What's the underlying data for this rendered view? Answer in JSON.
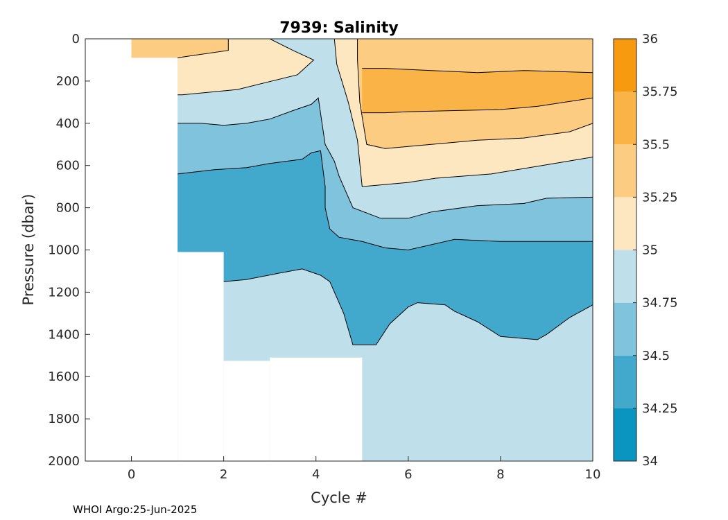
{
  "chart_data": {
    "type": "heatmap",
    "subtype": "filled-contour",
    "title": "7939:  Salinity",
    "xlabel": "Cycle #",
    "ylabel": "Pressure (dbar)",
    "xlim": [
      -1,
      10
    ],
    "ylim": [
      0,
      2000
    ],
    "y_reversed": true,
    "x_ticks": [
      0,
      2,
      4,
      6,
      8,
      10
    ],
    "y_ticks": [
      0,
      200,
      400,
      600,
      800,
      1000,
      1200,
      1400,
      1600,
      1800,
      2000
    ],
    "colorbar": {
      "levels": [
        34,
        34.25,
        34.5,
        34.75,
        35,
        35.25,
        35.5,
        35.75,
        36
      ],
      "tick_labels": [
        "34",
        "34.25",
        "34.5",
        "34.75",
        "35",
        "35.25",
        "35.5",
        "35.75",
        "36"
      ],
      "colors": [
        "#0a94c0",
        "#42a9cd",
        "#80c3dd",
        "#bfe0eb",
        "#fde7c1",
        "#fbcc82",
        "#f9b347",
        "#f79a10"
      ]
    },
    "profile_max_pressure": [
      {
        "cycle": 0,
        "pressure": 90
      },
      {
        "cycle": 1,
        "pressure": 1010
      },
      {
        "cycle": 2,
        "pressure": 1525
      },
      {
        "cycle": 3,
        "pressure": 1510
      },
      {
        "cycle": 5,
        "pressure": 2000
      },
      {
        "cycle": 10,
        "pressure": 2000
      }
    ],
    "regions": [
      {
        "level": "34.75-35",
        "points": [
          [
            0,
            0
          ],
          [
            10,
            0
          ],
          [
            10,
            2000
          ],
          [
            0,
            2000
          ]
        ]
      },
      {
        "level": "35-35.25",
        "points": [
          [
            0,
            0
          ],
          [
            3,
            0
          ],
          [
            3.5,
            55
          ],
          [
            3.95,
            100
          ],
          [
            3.6,
            170
          ],
          [
            2.3,
            240
          ],
          [
            1.1,
            265
          ],
          [
            1,
            265
          ],
          [
            1,
            90
          ],
          [
            0,
            90
          ]
        ]
      },
      {
        "level": "35-35.25",
        "points": [
          [
            4.4,
            0
          ],
          [
            10,
            0
          ],
          [
            10,
            560
          ],
          [
            8.9,
            600
          ],
          [
            7.8,
            640
          ],
          [
            6.6,
            660
          ],
          [
            6,
            680
          ],
          [
            5.5,
            690
          ],
          [
            5,
            700
          ],
          [
            4.9,
            480
          ],
          [
            4.7,
            300
          ],
          [
            4.45,
            120
          ]
        ]
      },
      {
        "level": "35.25-35.5",
        "points": [
          [
            0,
            0
          ],
          [
            2.1,
            0
          ],
          [
            2.1,
            55
          ],
          [
            1.3,
            80
          ],
          [
            1,
            90
          ],
          [
            0,
            90
          ]
        ]
      },
      {
        "level": "35.25-35.5",
        "points": [
          [
            4.9,
            0
          ],
          [
            10,
            0
          ],
          [
            10,
            400
          ],
          [
            9.5,
            440
          ],
          [
            8.5,
            470
          ],
          [
            7.5,
            480
          ],
          [
            6.5,
            500
          ],
          [
            6,
            510
          ],
          [
            5.5,
            520
          ],
          [
            5.1,
            500
          ],
          [
            4.95,
            300
          ],
          [
            4.9,
            100
          ]
        ]
      },
      {
        "level": "35.5-35.75",
        "points": [
          [
            5,
            140
          ],
          [
            5.5,
            140
          ],
          [
            6.5,
            150
          ],
          [
            7.5,
            160
          ],
          [
            8.5,
            150
          ],
          [
            10,
            160
          ],
          [
            10,
            280
          ],
          [
            8.8,
            320
          ],
          [
            8,
            335
          ],
          [
            7,
            340
          ],
          [
            6,
            345
          ],
          [
            5.5,
            350
          ],
          [
            5,
            350
          ]
        ]
      },
      {
        "level": "34.5-34.75",
        "points": [
          [
            1,
            400
          ],
          [
            1.5,
            400
          ],
          [
            2,
            410
          ],
          [
            2.5,
            400
          ],
          [
            3,
            380
          ],
          [
            3.5,
            340
          ],
          [
            3.9,
            310
          ],
          [
            4.05,
            280
          ],
          [
            4.2,
            500
          ],
          [
            4.4,
            580
          ],
          [
            4.5,
            650
          ],
          [
            4.8,
            800
          ],
          [
            5.4,
            850
          ],
          [
            6,
            850
          ],
          [
            6.5,
            820
          ],
          [
            7.5,
            790
          ],
          [
            8.5,
            780
          ],
          [
            9,
            755
          ],
          [
            10,
            750
          ],
          [
            10,
            1260
          ],
          [
            9.5,
            1320
          ],
          [
            9,
            1400
          ],
          [
            8.8,
            1425
          ],
          [
            8,
            1410
          ],
          [
            7.5,
            1340
          ],
          [
            7,
            1290
          ],
          [
            6.8,
            1260
          ],
          [
            6.2,
            1250
          ],
          [
            6,
            1270
          ],
          [
            5.6,
            1350
          ],
          [
            5.3,
            1450
          ],
          [
            4.8,
            1450
          ],
          [
            4.6,
            1300
          ],
          [
            4.3,
            1150
          ],
          [
            4.1,
            1120
          ],
          [
            3.7,
            1090
          ],
          [
            3.2,
            1110
          ],
          [
            2.5,
            1140
          ],
          [
            2,
            1150
          ],
          [
            2,
            1525
          ],
          [
            3,
            1525
          ],
          [
            3,
            2000
          ],
          [
            10,
            2000
          ],
          [
            10,
            2000
          ],
          [
            1,
            2000
          ]
        ]
      },
      {
        "level": "34.25-34.5",
        "points": [
          [
            1,
            640
          ],
          [
            1.8,
            620
          ],
          [
            2.5,
            610
          ],
          [
            3,
            590
          ],
          [
            3.7,
            570
          ],
          [
            3.9,
            540
          ],
          [
            4.1,
            530
          ],
          [
            4.2,
            700
          ],
          [
            4.2,
            800
          ],
          [
            4.3,
            900
          ],
          [
            4.5,
            940
          ],
          [
            5,
            960
          ],
          [
            5.5,
            990
          ],
          [
            6,
            1000
          ],
          [
            7,
            950
          ],
          [
            8,
            960
          ],
          [
            9,
            960
          ],
          [
            10,
            960
          ],
          [
            10,
            1260
          ],
          [
            9.5,
            1320
          ],
          [
            9,
            1400
          ],
          [
            8.8,
            1425
          ],
          [
            8,
            1410
          ],
          [
            7.5,
            1340
          ],
          [
            7,
            1290
          ],
          [
            6.8,
            1260
          ],
          [
            6.2,
            1250
          ],
          [
            6,
            1270
          ],
          [
            5.6,
            1350
          ],
          [
            5.3,
            1450
          ],
          [
            4.8,
            1450
          ],
          [
            4.6,
            1300
          ],
          [
            4.3,
            1150
          ],
          [
            4.1,
            1120
          ],
          [
            3.7,
            1090
          ],
          [
            3.2,
            1110
          ],
          [
            2.5,
            1140
          ],
          [
            2,
            1150
          ],
          [
            2,
            1010
          ],
          [
            1,
            1010
          ]
        ]
      },
      {
        "level": "34.75-35",
        "points": [
          [
            8,
            1970
          ],
          [
            8.3,
            1965
          ],
          [
            9,
            1970
          ],
          [
            9.5,
            1990
          ],
          [
            9.5,
            2000
          ],
          [
            7.8,
            2000
          ]
        ]
      }
    ],
    "masks": [
      {
        "points": [
          [
            -1,
            0
          ],
          [
            0,
            0
          ],
          [
            0,
            2000
          ],
          [
            -1,
            2000
          ]
        ]
      },
      {
        "points": [
          [
            0,
            90
          ],
          [
            1,
            90
          ],
          [
            1,
            2000
          ],
          [
            0,
            2000
          ]
        ]
      },
      {
        "points": [
          [
            1,
            1010
          ],
          [
            2,
            1010
          ],
          [
            2,
            2000
          ],
          [
            1,
            2000
          ]
        ]
      },
      {
        "points": [
          [
            2,
            1525
          ],
          [
            3,
            1525
          ],
          [
            3,
            2000
          ],
          [
            2,
            2000
          ]
        ]
      },
      {
        "points": [
          [
            3,
            1510
          ],
          [
            5,
            1510
          ],
          [
            5,
            2000
          ],
          [
            3,
            2000
          ]
        ]
      }
    ],
    "contour_lines": [
      {
        "level": 35.0,
        "points": [
          [
            4.4,
            0
          ],
          [
            4.45,
            120
          ],
          [
            4.7,
            300
          ],
          [
            4.9,
            480
          ],
          [
            5,
            700
          ],
          [
            5.5,
            690
          ],
          [
            6,
            680
          ],
          [
            6.6,
            660
          ],
          [
            7.8,
            640
          ],
          [
            8.9,
            600
          ],
          [
            10,
            560
          ]
        ]
      },
      {
        "level": 35.0,
        "points": [
          [
            3,
            0
          ],
          [
            3.5,
            55
          ],
          [
            3.95,
            100
          ],
          [
            3.6,
            170
          ],
          [
            2.3,
            240
          ],
          [
            1.1,
            265
          ],
          [
            1,
            265
          ]
        ]
      },
      {
        "level": 35.25,
        "points": [
          [
            4.9,
            0
          ],
          [
            4.9,
            100
          ],
          [
            4.95,
            300
          ],
          [
            5.1,
            500
          ],
          [
            5.5,
            520
          ],
          [
            6,
            510
          ],
          [
            6.5,
            500
          ],
          [
            7.5,
            480
          ],
          [
            8.5,
            470
          ],
          [
            9.5,
            440
          ],
          [
            10,
            400
          ]
        ]
      },
      {
        "level": 35.25,
        "points": [
          [
            2.1,
            0
          ],
          [
            2.1,
            55
          ],
          [
            1.3,
            80
          ],
          [
            1,
            90
          ]
        ]
      },
      {
        "level": 35.5,
        "points": [
          [
            10,
            160
          ],
          [
            8.5,
            150
          ],
          [
            7.5,
            160
          ],
          [
            6.5,
            150
          ],
          [
            5.5,
            140
          ],
          [
            5,
            140
          ]
        ]
      },
      {
        "level": 35.5,
        "points": [
          [
            5,
            350
          ],
          [
            5.5,
            350
          ],
          [
            6,
            345
          ],
          [
            7,
            340
          ],
          [
            8,
            335
          ],
          [
            8.8,
            320
          ],
          [
            10,
            280
          ]
        ]
      },
      {
        "level": 34.75,
        "points": [
          [
            1,
            400
          ],
          [
            1.5,
            400
          ],
          [
            2,
            410
          ],
          [
            2.5,
            400
          ],
          [
            3,
            380
          ],
          [
            3.5,
            340
          ],
          [
            3.9,
            310
          ],
          [
            4.05,
            280
          ],
          [
            4.2,
            500
          ],
          [
            4.4,
            580
          ],
          [
            4.5,
            650
          ],
          [
            4.8,
            800
          ],
          [
            5.4,
            850
          ],
          [
            6,
            850
          ],
          [
            6.5,
            820
          ],
          [
            7.5,
            790
          ],
          [
            8.5,
            780
          ],
          [
            9,
            755
          ],
          [
            10,
            750
          ]
        ]
      },
      {
        "level": 34.5,
        "points": [
          [
            1,
            640
          ],
          [
            1.8,
            620
          ],
          [
            2.5,
            610
          ],
          [
            3,
            590
          ],
          [
            3.7,
            570
          ],
          [
            3.9,
            540
          ],
          [
            4.1,
            530
          ],
          [
            4.2,
            700
          ],
          [
            4.2,
            800
          ],
          [
            4.3,
            900
          ],
          [
            4.5,
            940
          ],
          [
            5,
            960
          ],
          [
            5.5,
            990
          ],
          [
            6,
            1000
          ],
          [
            7,
            950
          ],
          [
            8,
            960
          ],
          [
            9,
            960
          ],
          [
            10,
            960
          ]
        ]
      },
      {
        "level": 34.5,
        "points": [
          [
            2,
            1150
          ],
          [
            2.5,
            1140
          ],
          [
            3.2,
            1110
          ],
          [
            3.7,
            1090
          ],
          [
            4.1,
            1120
          ],
          [
            4.3,
            1150
          ],
          [
            4.6,
            1300
          ],
          [
            4.8,
            1450
          ],
          [
            5.3,
            1450
          ],
          [
            5.6,
            1350
          ],
          [
            6,
            1270
          ],
          [
            6.2,
            1250
          ],
          [
            6.8,
            1260
          ],
          [
            7,
            1290
          ],
          [
            7.5,
            1340
          ],
          [
            8,
            1410
          ],
          [
            8.8,
            1425
          ],
          [
            9,
            1400
          ],
          [
            9.5,
            1320
          ],
          [
            10,
            1260
          ]
        ]
      }
    ]
  },
  "footer": {
    "credit": "WHOI Argo:25-Jun-2025"
  }
}
